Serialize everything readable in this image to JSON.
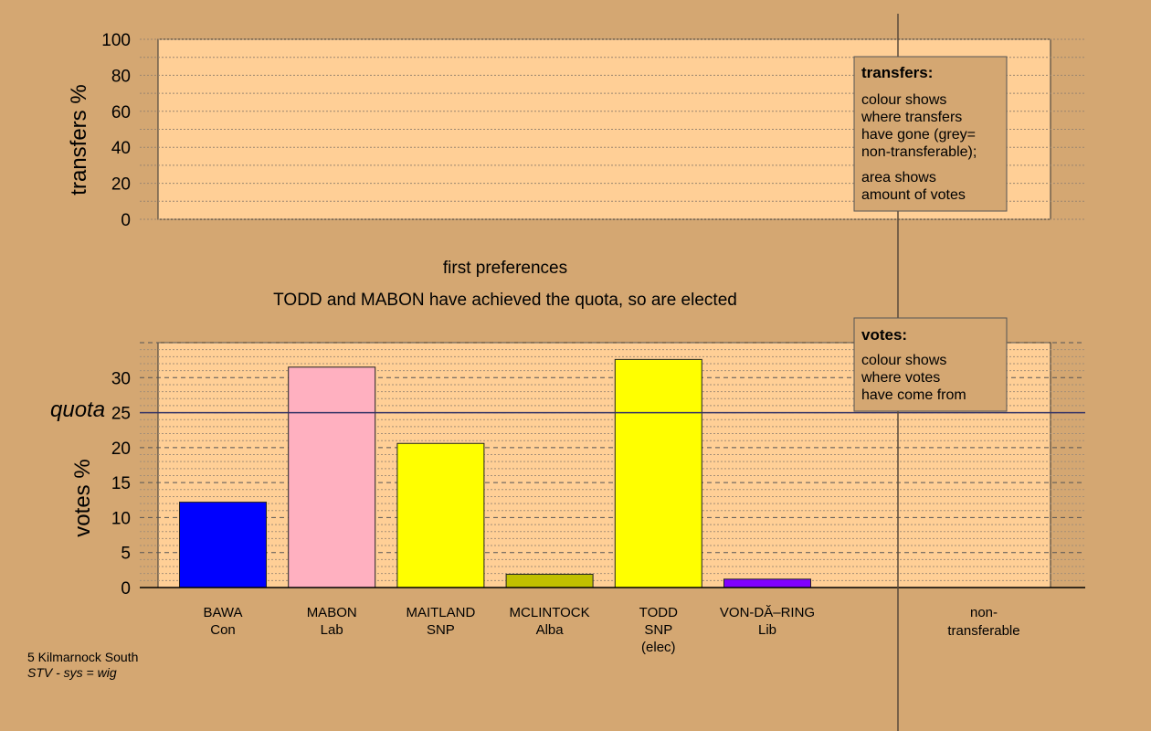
{
  "colors": {
    "background": "#d4a772",
    "plot_area": "#ffcf96",
    "Con": "#0000ff",
    "Lab": "#ffb0c0",
    "SNP": "#ffff00",
    "Alba": "#c0c000",
    "Lib": "#8000ff"
  },
  "captions": {
    "round": "first preferences",
    "status": "TODD and MABON have achieved the quota, so are elected"
  },
  "footer": {
    "ward": "5 Kilmarnock South",
    "system": "STV - sys = wig"
  },
  "legends": {
    "transfers": {
      "title": "transfers:",
      "lines1": [
        "colour shows",
        "where transfers",
        "have gone (grey=",
        "non-transferable);"
      ],
      "lines2": [
        "area shows",
        "amount of votes"
      ]
    },
    "votes": {
      "title": "votes:",
      "lines": [
        "colour shows",
        "where votes",
        "have come from"
      ]
    }
  },
  "chart_data": [
    {
      "type": "bar",
      "ylabel": "transfers %",
      "ylim": [
        0,
        100
      ],
      "yticks": [
        0,
        20,
        40,
        60,
        80,
        100
      ],
      "categories": [
        "BAWA Con",
        "MABON Lab",
        "MAITLAND SNP",
        "MCLINTOCK Alba",
        "TODD SNP (elec)",
        "VON-DĂ–RING Lib",
        "non-transferable"
      ],
      "values": [
        0,
        0,
        0,
        0,
        0,
        0,
        0
      ],
      "grid": true
    },
    {
      "type": "bar",
      "ylabel": "votes %",
      "ylim": [
        0,
        35
      ],
      "yticks": [
        0,
        5,
        10,
        15,
        20,
        25,
        30
      ],
      "quota": 25,
      "quota_label": "quota",
      "grid": true,
      "bars": [
        {
          "line1": "BAWA",
          "line2": "Con",
          "line3": "",
          "value": 12.2,
          "color": "#0000ff"
        },
        {
          "line1": "MABON",
          "line2": "Lab",
          "line3": "",
          "value": 31.5,
          "color": "#ffb0c0"
        },
        {
          "line1": "MAITLAND",
          "line2": "SNP",
          "line3": "",
          "value": 20.6,
          "color": "#ffff00"
        },
        {
          "line1": "MCLINTOCK",
          "line2": "Alba",
          "line3": "",
          "value": 1.9,
          "color": "#c0c000"
        },
        {
          "line1": "TODD",
          "line2": "SNP",
          "line3": "(elec)",
          "value": 32.6,
          "color": "#ffff00"
        },
        {
          "line1": "VON-DĂ–RING",
          "line2": "Lib",
          "line3": "",
          "value": 1.2,
          "color": "#8000ff"
        }
      ],
      "nontransferable": {
        "line1": "non-",
        "line2": "transferable",
        "value": 0
      }
    }
  ]
}
